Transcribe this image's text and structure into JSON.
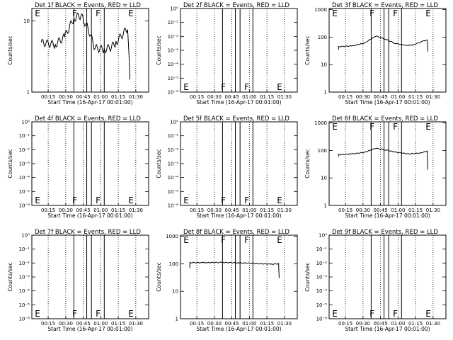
{
  "chart_data": [
    {
      "type": "line",
      "title": "Det 1f BLACK = Events, RED = LLD",
      "xlabel": "Start Time (16-Apr-17 00:01:00)",
      "ylabel": "Counts/sec",
      "x_ticks": [
        "00:15",
        "00:30",
        "00:45",
        "01:00",
        "01:15",
        "01:30"
      ],
      "y_ticks": [
        "1",
        "10"
      ],
      "ylim": [
        1,
        15
      ],
      "log_y": true,
      "markers": [
        {
          "label": "E",
          "minutes": 2,
          "at": "top"
        },
        {
          "label": "F",
          "minutes": 34,
          "at": "top"
        },
        {
          "label": "F",
          "minutes": 54,
          "at": "top"
        },
        {
          "label": "E",
          "minutes": 82,
          "at": "top"
        }
      ],
      "series": [
        {
          "color": "#000000",
          "points": [
            [
              8,
              5
            ],
            [
              20,
              4.7
            ],
            [
              28,
              6
            ],
            [
              36,
              11
            ],
            [
              42,
              12
            ],
            [
              48,
              8
            ],
            [
              54,
              4.2
            ],
            [
              62,
              4
            ],
            [
              68,
              4.3
            ],
            [
              72,
              5
            ],
            [
              82,
              8
            ],
            [
              84,
              1.5
            ]
          ]
        }
      ]
    },
    {
      "type": "line",
      "title": "Det 2f BLACK = Events, RED = LLD",
      "xlabel": "Start Time (16-Apr-17 00:01:00)",
      "ylabel": "Counts/sec",
      "x_ticks": [
        "00:15",
        "00:30",
        "00:45",
        "01:00",
        "01:15",
        "01:30"
      ],
      "y_ticks": [
        "10⁻⁶",
        "10⁻⁵",
        "10⁻⁴",
        "10⁻³",
        "10⁻²",
        "10⁻¹",
        "10⁰"
      ],
      "ylim": [
        1,
        1000000
      ],
      "log_y": true,
      "markers": [
        {
          "label": "E",
          "minutes": 2,
          "at": "bottom"
        },
        {
          "label": "F",
          "minutes": 34,
          "at": "bottom"
        },
        {
          "label": "F",
          "minutes": 54,
          "at": "bottom"
        },
        {
          "label": "E",
          "minutes": 82,
          "at": "bottom"
        }
      ],
      "series": []
    },
    {
      "type": "line",
      "title": "Det 3f BLACK = Events, RED = LLD",
      "xlabel": "Start Time (16-Apr-17 00:01:00)",
      "ylabel": "Counts/sec",
      "x_ticks": [
        "00:15",
        "00:30",
        "00:45",
        "01:00",
        "01:15",
        "01:30"
      ],
      "y_ticks": [
        "1",
        "10",
        "100",
        "1000"
      ],
      "ylim": [
        1,
        1100
      ],
      "log_y": true,
      "markers": [
        {
          "label": "E",
          "minutes": 2,
          "at": "top"
        },
        {
          "label": "F",
          "minutes": 34,
          "at": "top"
        },
        {
          "label": "F",
          "minutes": 54,
          "at": "top"
        },
        {
          "label": "E",
          "minutes": 82,
          "at": "top"
        }
      ],
      "series": [
        {
          "color": "#000000",
          "points": [
            [
              8,
              35
            ],
            [
              8,
              45
            ],
            [
              20,
              48
            ],
            [
              30,
              60
            ],
            [
              40,
              110
            ],
            [
              48,
              85
            ],
            [
              56,
              60
            ],
            [
              66,
              50
            ],
            [
              72,
              52
            ],
            [
              80,
              70
            ],
            [
              84,
              80
            ],
            [
              84.5,
              30
            ]
          ]
        }
      ]
    },
    {
      "type": "line",
      "title": "Det 4f BLACK = Events, RED = LLD",
      "xlabel": "Start Time (16-Apr-17 00:01:00)",
      "ylabel": "Counts/sec",
      "x_ticks": [
        "00:15",
        "00:30",
        "00:45",
        "01:00",
        "01:15",
        "01:30"
      ],
      "y_ticks": [
        "10⁻⁶",
        "10⁻⁵",
        "10⁻⁴",
        "10⁻³",
        "10⁻²",
        "10⁻¹",
        "10⁰"
      ],
      "ylim": [
        1,
        1000000
      ],
      "log_y": true,
      "markers": [
        {
          "label": "E",
          "minutes": 2,
          "at": "bottom"
        },
        {
          "label": "F",
          "minutes": 34,
          "at": "bottom"
        },
        {
          "label": "F",
          "minutes": 54,
          "at": "bottom"
        },
        {
          "label": "E",
          "minutes": 82,
          "at": "bottom"
        }
      ],
      "series": []
    },
    {
      "type": "line",
      "title": "Det 5f BLACK = Events, RED = LLD",
      "xlabel": "Start Time (16-Apr-17 00:01:00)",
      "ylabel": "Counts/sec",
      "x_ticks": [
        "00:15",
        "00:30",
        "00:45",
        "01:00",
        "01:15",
        "01:30"
      ],
      "y_ticks": [
        "10⁻⁶",
        "10⁻⁵",
        "10⁻⁴",
        "10⁻³",
        "10⁻²",
        "10⁻¹",
        "10⁰"
      ],
      "ylim": [
        1,
        1000000
      ],
      "log_y": true,
      "markers": [
        {
          "label": "E",
          "minutes": 2,
          "at": "bottom"
        },
        {
          "label": "F",
          "minutes": 34,
          "at": "bottom"
        },
        {
          "label": "F",
          "minutes": 54,
          "at": "bottom"
        },
        {
          "label": "E",
          "minutes": 82,
          "at": "bottom"
        }
      ],
      "series": []
    },
    {
      "type": "line",
      "title": "Det 6f BLACK = Events, RED = LLD",
      "xlabel": "Start Time (16-Apr-17 00:01:00)",
      "ylabel": "Counts/sec",
      "x_ticks": [
        "00:15",
        "00:30",
        "00:45",
        "01:00",
        "01:15",
        "01:30"
      ],
      "y_ticks": [
        "1",
        "10",
        "100",
        "1000"
      ],
      "ylim": [
        1,
        1100
      ],
      "log_y": true,
      "markers": [
        {
          "label": "E",
          "minutes": 2,
          "at": "top"
        },
        {
          "label": "F",
          "minutes": 34,
          "at": "top"
        },
        {
          "label": "F",
          "minutes": 54,
          "at": "top"
        },
        {
          "label": "E",
          "minutes": 82,
          "at": "top"
        }
      ],
      "series": [
        {
          "color": "#000000",
          "points": [
            [
              8,
              60
            ],
            [
              8,
              70
            ],
            [
              20,
              75
            ],
            [
              30,
              85
            ],
            [
              40,
              120
            ],
            [
              48,
              105
            ],
            [
              58,
              85
            ],
            [
              68,
              75
            ],
            [
              78,
              80
            ],
            [
              84,
              95
            ],
            [
              84.5,
              20
            ]
          ]
        }
      ]
    },
    {
      "type": "line",
      "title": "Det 7f BLACK = Events, RED = LLD",
      "xlabel": "Start Time (16-Apr-17 00:01:00)",
      "ylabel": "Counts/sec",
      "x_ticks": [
        "00:15",
        "00:30",
        "00:45",
        "01:00",
        "01:15",
        "01:30"
      ],
      "y_ticks": [
        "10⁻⁶",
        "10⁻⁵",
        "10⁻⁴",
        "10⁻³",
        "10⁻²",
        "10⁻¹",
        "10⁰"
      ],
      "ylim": [
        1,
        1000000
      ],
      "log_y": true,
      "markers": [
        {
          "label": "E",
          "minutes": 2,
          "at": "bottom"
        },
        {
          "label": "F",
          "minutes": 34,
          "at": "bottom"
        },
        {
          "label": "F",
          "minutes": 54,
          "at": "bottom"
        },
        {
          "label": "E",
          "minutes": 82,
          "at": "bottom"
        }
      ],
      "series": []
    },
    {
      "type": "line",
      "title": "Det 8f BLACK = Events, RED = LLD",
      "xlabel": "Start Time (16-Apr-17 00:01:00)",
      "ylabel": "Counts/sec",
      "x_ticks": [
        "00:15",
        "00:30",
        "00:45",
        "01:00",
        "01:15",
        "01:30"
      ],
      "y_ticks": [
        "1",
        "10",
        "100",
        "1000"
      ],
      "ylim": [
        1,
        1100
      ],
      "log_y": true,
      "markers": [
        {
          "label": "E",
          "minutes": 2,
          "at": "top"
        },
        {
          "label": "F",
          "minutes": 34,
          "at": "top"
        },
        {
          "label": "F",
          "minutes": 54,
          "at": "top"
        },
        {
          "label": "E",
          "minutes": 82,
          "at": "top"
        }
      ],
      "series": [
        {
          "color": "#000000",
          "points": [
            [
              8,
              70
            ],
            [
              8,
              110
            ],
            [
              20,
              110
            ],
            [
              35,
              112
            ],
            [
              50,
              108
            ],
            [
              60,
              105
            ],
            [
              70,
              100
            ],
            [
              78,
              97
            ],
            [
              84,
              100
            ],
            [
              84.5,
              30
            ]
          ]
        }
      ]
    },
    {
      "type": "line",
      "title": "Det 9f BLACK = Events, RED = LLD",
      "xlabel": "Start Time (16-Apr-17 00:01:00)",
      "ylabel": "Counts/sec",
      "x_ticks": [
        "00:15",
        "00:30",
        "00:45",
        "01:00",
        "01:15",
        "01:30"
      ],
      "y_ticks": [
        "10⁻⁶",
        "10⁻⁵",
        "10⁻⁴",
        "10⁻³",
        "10⁻²",
        "10⁻¹",
        "10⁰"
      ],
      "ylim": [
        1,
        1000000
      ],
      "log_y": true,
      "markers": [
        {
          "label": "E",
          "minutes": 2,
          "at": "bottom"
        },
        {
          "label": "F",
          "minutes": 34,
          "at": "bottom"
        },
        {
          "label": "F",
          "minutes": 54,
          "at": "bottom"
        },
        {
          "label": "E",
          "minutes": 82,
          "at": "bottom"
        }
      ],
      "series": []
    }
  ]
}
